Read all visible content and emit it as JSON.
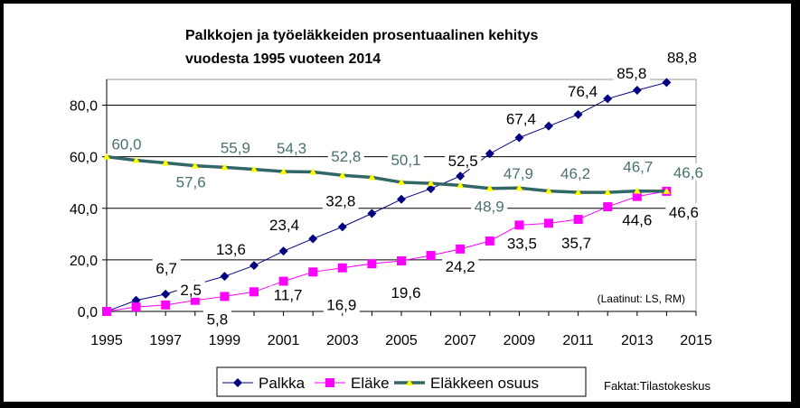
{
  "chart_data": {
    "type": "line",
    "title_line1": "Palkkojen ja työeläkkeiden prosentuaalinen kehitys",
    "title_line2": "vuodesta 1995 vuoteen 2014",
    "xlim": [
      1995,
      2015
    ],
    "ylim": [
      0,
      90
    ],
    "x_ticks": [
      "1995",
      "1997",
      "1999",
      "2001",
      "2003",
      "2005",
      "2007",
      "2009",
      "2011",
      "2013",
      "2015"
    ],
    "y_ticks": [
      "0,0",
      "20,0",
      "40,0",
      "60,0",
      "80,0"
    ],
    "grid": "horizontal",
    "legend_position": "bottom",
    "x": [
      1995,
      1996,
      1997,
      1998,
      1999,
      2000,
      2001,
      2002,
      2003,
      2004,
      2005,
      2006,
      2007,
      2008,
      2009,
      2010,
      2011,
      2012,
      2013,
      2014
    ],
    "series": [
      {
        "name": "Palkka",
        "color": "#000080",
        "marker": "diamond",
        "values": [
          0,
          4.3,
          6.7,
          10.4,
          13.6,
          17.8,
          23.4,
          28.2,
          32.8,
          38.0,
          43.5,
          47.6,
          52.5,
          61.2,
          67.4,
          71.9,
          76.4,
          82.5,
          85.8,
          88.8
        ],
        "labels": {
          "1997": "6,7",
          "1999": "13,6",
          "2001": "23,4",
          "2003": "32,8",
          "2007": "52,5",
          "2009": "67,4",
          "2011": "76,4",
          "2013": "85,8",
          "2014": "88,8"
        }
      },
      {
        "name": "Eläke",
        "color": "#ff00ff",
        "marker": "square",
        "values": [
          0,
          1.7,
          2.5,
          4.3,
          5.8,
          7.6,
          11.7,
          15.3,
          16.9,
          18.5,
          19.6,
          21.7,
          24.2,
          27.3,
          33.5,
          34.2,
          35.7,
          40.6,
          44.6,
          46.6
        ],
        "labels": {
          "1997": "2,5",
          "1999": "5,8",
          "2001": "11,7",
          "2003": "16,9",
          "2005": "19,6",
          "2007": "24,2",
          "2009": "33,5",
          "2011": "35,7",
          "2013": "44,6",
          "2014": "46,6"
        }
      },
      {
        "name": "Eläkkeen osuus",
        "color": "#336666",
        "marker": "triangle",
        "marker_color": "#ffff00",
        "values": [
          60.0,
          58.6,
          57.6,
          56.5,
          55.9,
          55.1,
          54.3,
          54.1,
          52.8,
          52.0,
          50.1,
          49.7,
          48.9,
          47.7,
          47.9,
          46.7,
          46.2,
          46.2,
          46.7,
          46.6
        ],
        "labels": {
          "1995": "60,0",
          "1997": "57,6",
          "1999": "55,9",
          "2001": "54,3",
          "2003": "52,8",
          "2005": "50,1",
          "2007": "48,9",
          "2009": "47,9",
          "2011": "46,2",
          "2013": "46,7",
          "2014": "46,6"
        }
      }
    ],
    "annotation": "(Laatinut: LS, RM)",
    "source": "Faktat:Tilastokeskus"
  }
}
